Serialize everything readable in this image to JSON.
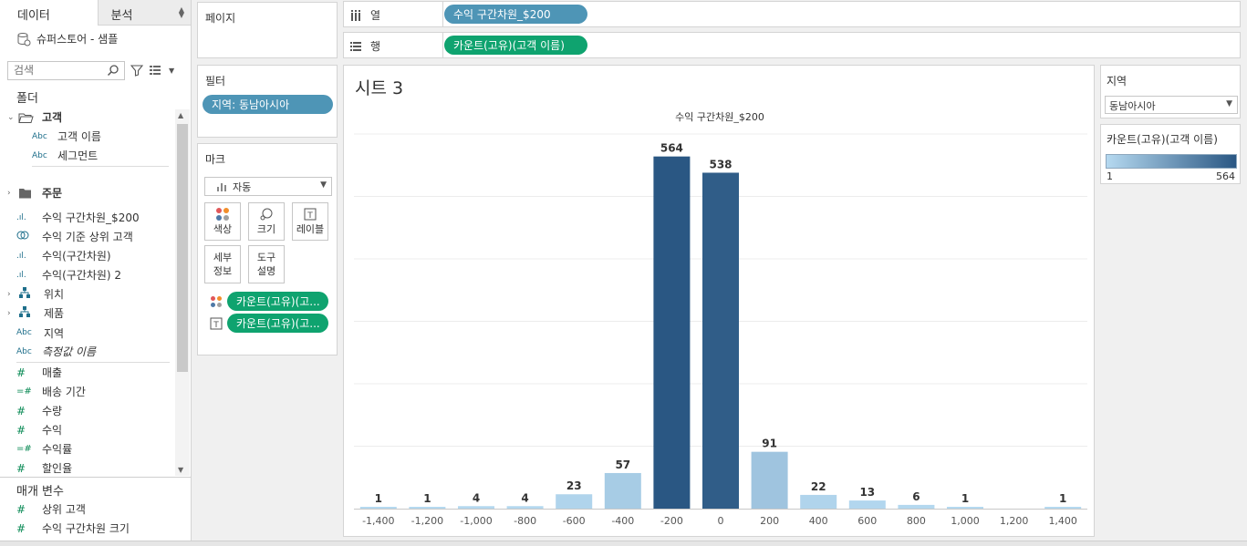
{
  "left_pane": {
    "tabs": [
      {
        "label": "데이터"
      },
      {
        "label": "분석"
      }
    ],
    "datasource": "슈퍼스토어 - 샘플",
    "search": {
      "placeholder": "검색"
    },
    "folders_heading": "폴더",
    "fields": [
      {
        "type": "group-open",
        "label": "고객"
      },
      {
        "type": "Abc",
        "label": "고객 이름"
      },
      {
        "type": "Abc",
        "label": "세그먼트"
      },
      {
        "type": "group",
        "label": "주문"
      },
      {
        "type": "bin",
        "label": "수익 구간차원_$200"
      },
      {
        "type": "set",
        "label": "수익 기준 상위 고객"
      },
      {
        "type": "bin",
        "label": "수익(구간차원)"
      },
      {
        "type": "bin",
        "label": "수익(구간차원) 2"
      },
      {
        "type": "hier",
        "label": "위치"
      },
      {
        "type": "hier",
        "label": "제품"
      },
      {
        "type": "Abc",
        "label": "지역"
      },
      {
        "type": "Abc",
        "label": "측정값 이름"
      },
      {
        "type": "#",
        "label": "매출"
      },
      {
        "type": "=#",
        "label": "배송 기간"
      },
      {
        "type": "#",
        "label": "수량"
      },
      {
        "type": "#",
        "label": "수익"
      },
      {
        "type": "=#",
        "label": "수익률"
      },
      {
        "type": "#",
        "label": "할인율"
      }
    ],
    "parameters_heading": "매개 변수",
    "parameters": [
      {
        "type": "#",
        "label": "상위 고객"
      },
      {
        "type": "#",
        "label": "수익 구간차원 크기"
      }
    ]
  },
  "pages_card": {
    "title": "페이지"
  },
  "filters_card": {
    "title": "필터",
    "pill": "지역: 동남아시아"
  },
  "marks_card": {
    "title": "마크",
    "mark_type": "자동",
    "buttons": [
      {
        "label": "색상"
      },
      {
        "label": "크기"
      },
      {
        "label": "레이블"
      },
      {
        "label": "세부\n정보"
      },
      {
        "label": "도구\n설명"
      }
    ],
    "pills": [
      "카운트(고유)(고...",
      "카운트(고유)(고..."
    ]
  },
  "shelves": {
    "columns": {
      "label": "열",
      "pill": "수익 구간차원_$200"
    },
    "rows": {
      "label": "행",
      "pill": "카운트(고유)(고객 이름)"
    }
  },
  "sheet": {
    "title": "시트 3"
  },
  "chart_data": {
    "type": "bar",
    "title": "수익 구간차원_$200",
    "categories": [
      "-1,400",
      "-1,200",
      "-1,000",
      "-800",
      "-600",
      "-400",
      "-200",
      "0",
      "200",
      "400",
      "600",
      "800",
      "1,000",
      "1,200",
      "1,400"
    ],
    "values": [
      1,
      1,
      4,
      4,
      23,
      57,
      564,
      538,
      91,
      22,
      13,
      6,
      1,
      null,
      1
    ],
    "data_labels": [
      "1",
      "1",
      "4",
      "4",
      "23",
      "57",
      "564",
      "538",
      "91",
      "22",
      "13",
      "6",
      "1",
      "",
      "1"
    ],
    "ylim": [
      0,
      600
    ],
    "color_scale": {
      "low": "#b5d9f0",
      "high": "#2a5783",
      "min": 1,
      "max": 564
    },
    "grid": true
  },
  "legends": {
    "filter": {
      "title": "지역",
      "value": "동남아시아"
    },
    "color": {
      "title": "카운트(고유)(고객 이름)",
      "min_label": "1",
      "max_label": "564"
    }
  }
}
